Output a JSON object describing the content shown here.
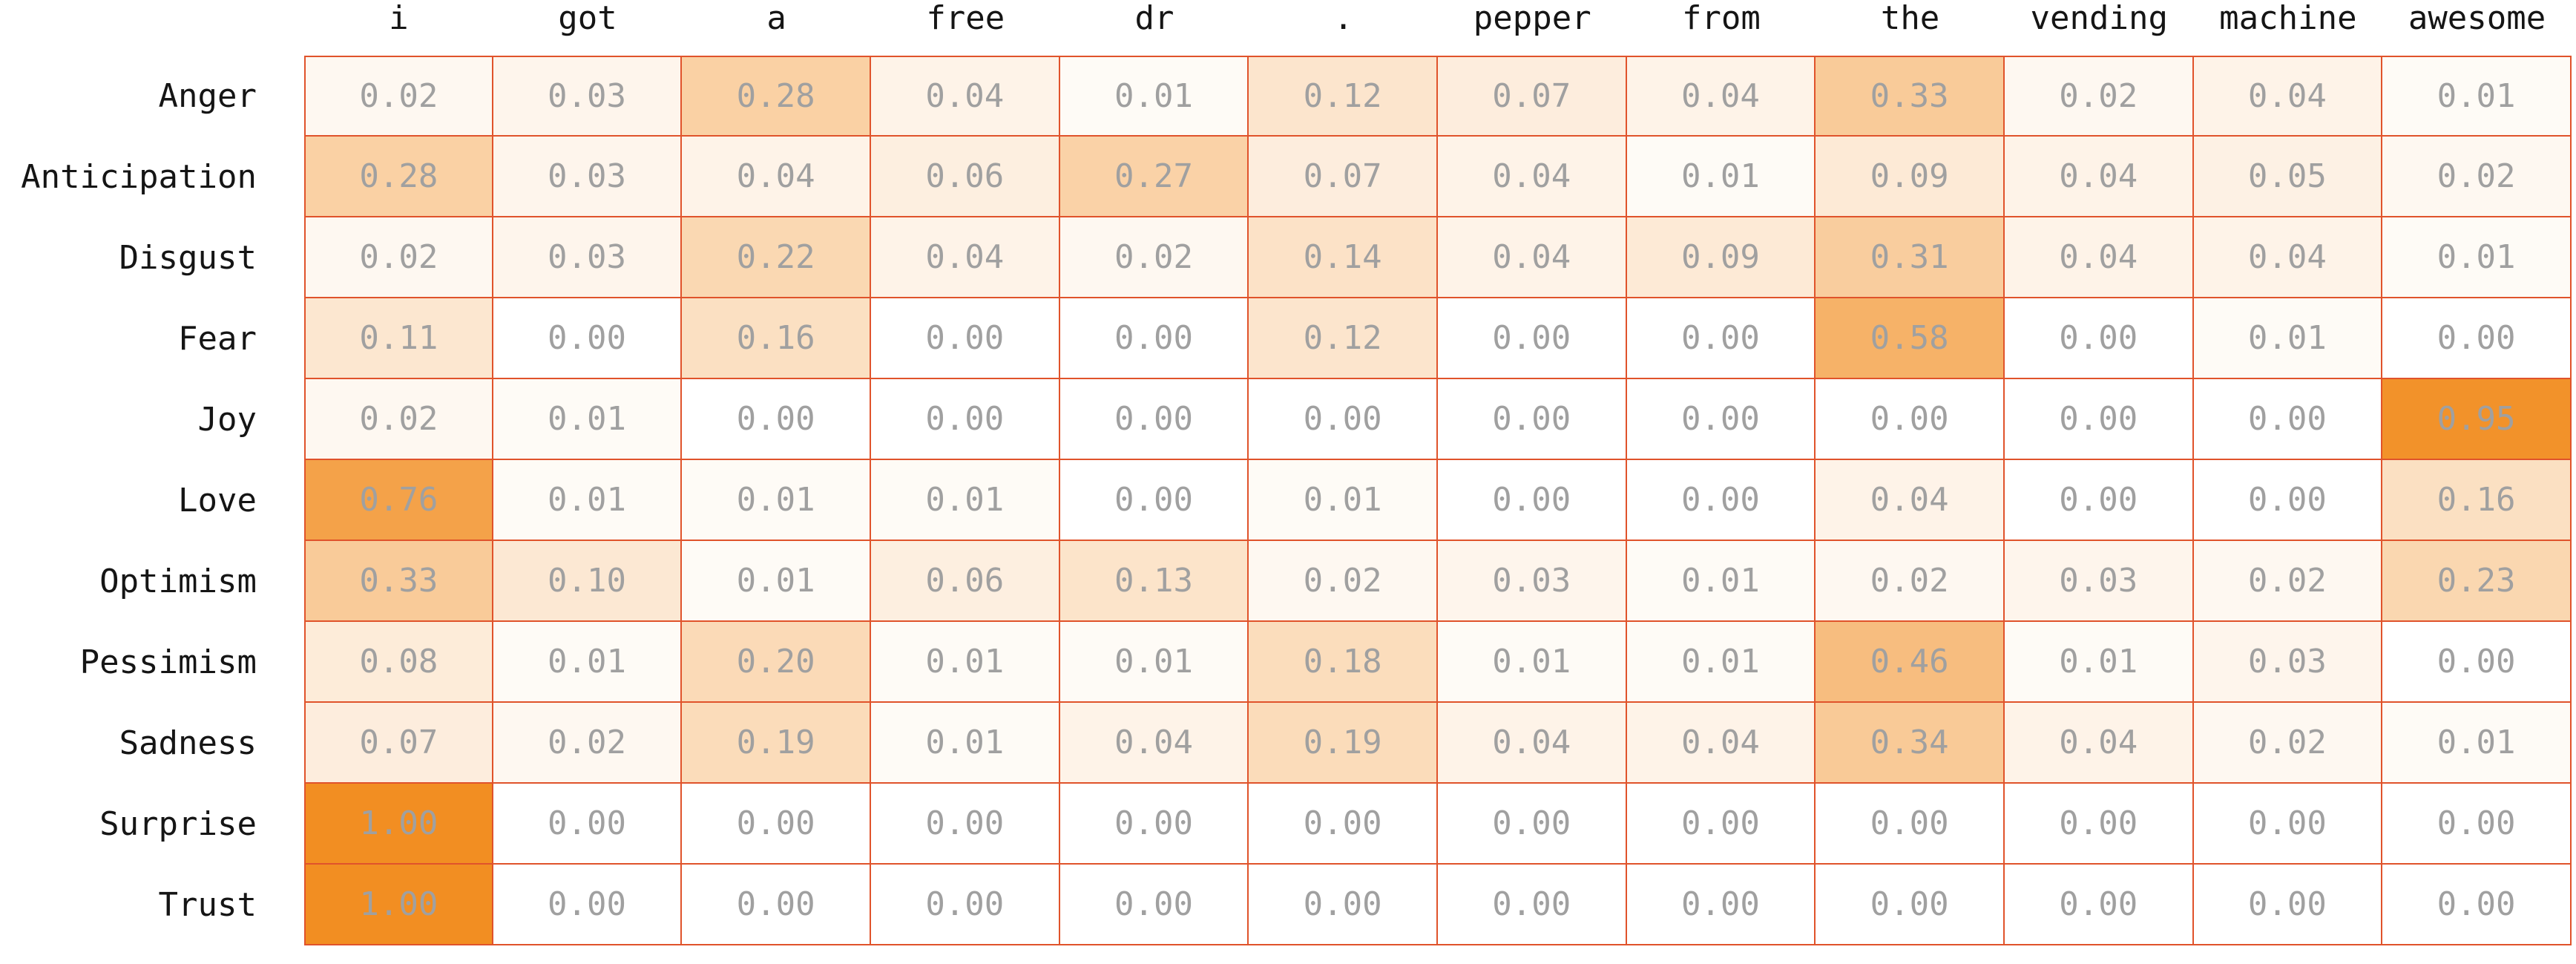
{
  "chart_data": {
    "type": "heatmap",
    "title": "",
    "xlabel": "",
    "ylabel": "",
    "legend": "none",
    "grid": "full-cell-borders",
    "value_format": "2-decimals",
    "value_range": [
      0,
      1
    ],
    "x_categories": [
      "i",
      "got",
      "a",
      "free",
      "dr",
      ".",
      "pepper",
      "from",
      "the",
      "vending",
      "machine",
      "awesome"
    ],
    "y_categories": [
      "Anger",
      "Anticipation",
      "Disgust",
      "Fear",
      "Joy",
      "Love",
      "Optimism",
      "Pessimism",
      "Sadness",
      "Surprise",
      "Trust"
    ],
    "values": [
      [
        0.02,
        0.03,
        0.28,
        0.04,
        0.01,
        0.12,
        0.07,
        0.04,
        0.33,
        0.02,
        0.04,
        0.01
      ],
      [
        0.28,
        0.03,
        0.04,
        0.06,
        0.27,
        0.07,
        0.04,
        0.01,
        0.09,
        0.04,
        0.05,
        0.02
      ],
      [
        0.02,
        0.03,
        0.22,
        0.04,
        0.02,
        0.14,
        0.04,
        0.09,
        0.31,
        0.04,
        0.04,
        0.01
      ],
      [
        0.11,
        0.0,
        0.16,
        0.0,
        0.0,
        0.12,
        0.0,
        0.0,
        0.58,
        0.0,
        0.01,
        0.0
      ],
      [
        0.02,
        0.01,
        0.0,
        0.0,
        0.0,
        0.0,
        0.0,
        0.0,
        0.0,
        0.0,
        0.0,
        0.95
      ],
      [
        0.76,
        0.01,
        0.01,
        0.01,
        0.0,
        0.01,
        0.0,
        0.0,
        0.04,
        0.0,
        0.0,
        0.16
      ],
      [
        0.33,
        0.1,
        0.01,
        0.06,
        0.13,
        0.02,
        0.03,
        0.01,
        0.02,
        0.03,
        0.02,
        0.23
      ],
      [
        0.08,
        0.01,
        0.2,
        0.01,
        0.01,
        0.18,
        0.01,
        0.01,
        0.46,
        0.01,
        0.03,
        0.0
      ],
      [
        0.07,
        0.02,
        0.19,
        0.01,
        0.04,
        0.19,
        0.04,
        0.04,
        0.34,
        0.04,
        0.02,
        0.01
      ],
      [
        1.0,
        0.0,
        0.0,
        0.0,
        0.0,
        0.0,
        0.0,
        0.0,
        0.0,
        0.0,
        0.0,
        0.0
      ],
      [
        1.0,
        0.0,
        0.0,
        0.0,
        0.0,
        0.0,
        0.0,
        0.0,
        0.0,
        0.0,
        0.0,
        0.0
      ]
    ],
    "colors": {
      "background": "#FFFFFF",
      "cell_low": "#FFFFFF",
      "cell_high": "#F28E22",
      "color_gamma": 0.7,
      "cell_border": "#E0532B",
      "value_text": "#A0A0A0",
      "label_text": "#151515"
    }
  }
}
